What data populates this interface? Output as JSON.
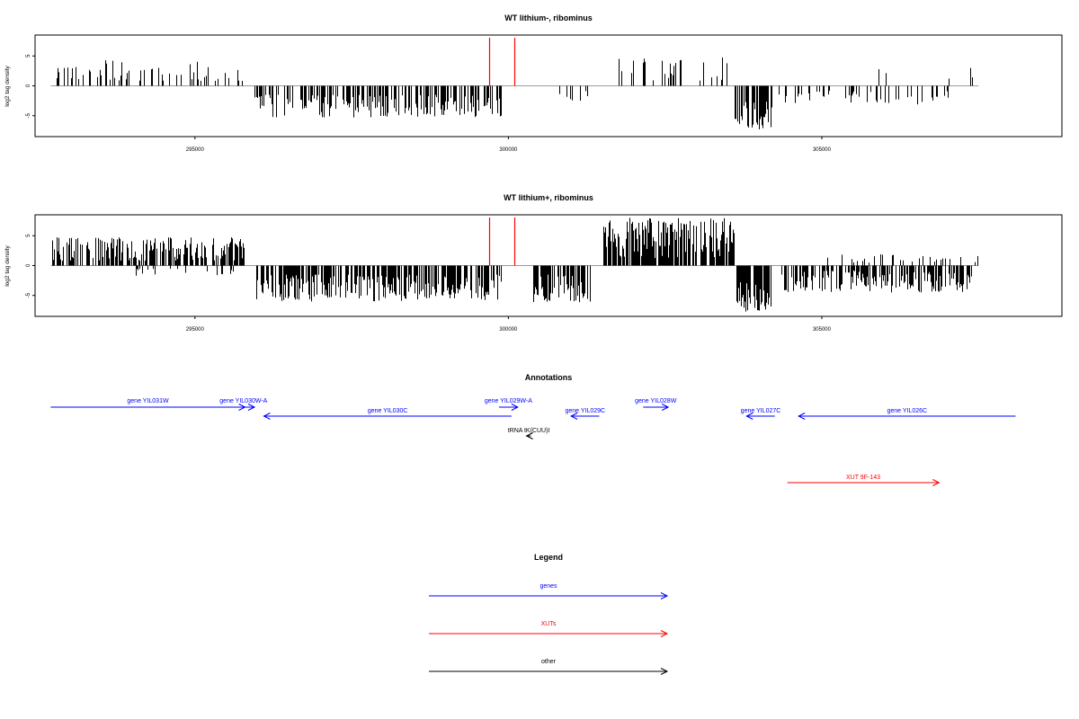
{
  "chart_data": [
    {
      "type": "bar",
      "title": "WT lithium-, ribominus",
      "ylabel": "log2 tag density",
      "ylim": [
        -8.5,
        8.5
      ],
      "yticks": [
        -5,
        0,
        5
      ],
      "xlim": [
        292450,
        308830
      ],
      "xticks": [
        295000,
        300000,
        305000
      ],
      "xtick_labels": [
        "295000",
        "300000",
        "305000"
      ],
      "markers": [
        299700,
        300100
      ],
      "marker_color": "#ff0000",
      "segments": [
        {
          "from": 292700,
          "to": 295800,
          "count": 55,
          "pattern": "sparse-positive",
          "min": 0.8,
          "max": 4.3
        },
        {
          "from": 295950,
          "to": 299900,
          "count": 210,
          "pattern": "dense-negative",
          "min": 1.5,
          "max": 5.3
        },
        {
          "from": 300800,
          "to": 301300,
          "count": 8,
          "pattern": "sparse-negative",
          "min": 0.6,
          "max": 2.5
        },
        {
          "from": 301600,
          "to": 303500,
          "count": 28,
          "pattern": "sparse-positive",
          "min": 0.8,
          "max": 4.8
        },
        {
          "from": 303600,
          "to": 304200,
          "count": 60,
          "pattern": "dense-negative",
          "min": 2.5,
          "max": 7.5
        },
        {
          "from": 304300,
          "to": 307200,
          "count": 50,
          "pattern": "sparse-negative",
          "min": 0.8,
          "max": 3.2
        },
        {
          "from": 305100,
          "to": 307500,
          "count": 5,
          "pattern": "sparse-positive",
          "min": 1.0,
          "max": 3.4
        }
      ]
    },
    {
      "type": "bar",
      "title": "WT lithium+, ribominus",
      "ylabel": "log2 tag density",
      "ylim": [
        -8.5,
        8.5
      ],
      "yticks": [
        -5,
        0,
        5
      ],
      "xlim": [
        292450,
        308830
      ],
      "xticks": [
        295000,
        300000,
        305000
      ],
      "xtick_labels": [
        "295000",
        "300000",
        "305000"
      ],
      "markers": [
        299700,
        300100
      ],
      "marker_color": "#ff0000",
      "segments": [
        {
          "from": 292700,
          "to": 295850,
          "count": 230,
          "pattern": "dense-positive",
          "min": 0.8,
          "max": 4.8
        },
        {
          "from": 293800,
          "to": 295800,
          "count": 20,
          "pattern": "sparse-negative",
          "min": 0.5,
          "max": 1.8
        },
        {
          "from": 295950,
          "to": 299900,
          "count": 300,
          "pattern": "dense-negative",
          "min": 1.5,
          "max": 6.0
        },
        {
          "from": 300400,
          "to": 301300,
          "count": 80,
          "pattern": "dense-negative",
          "min": 1.5,
          "max": 6.2
        },
        {
          "from": 301500,
          "to": 303600,
          "count": 240,
          "pattern": "dense-positive",
          "min": 1.0,
          "max": 8.0
        },
        {
          "from": 303600,
          "to": 304200,
          "count": 90,
          "pattern": "dense-negative",
          "min": 2.5,
          "max": 7.8
        },
        {
          "from": 304300,
          "to": 307400,
          "count": 200,
          "pattern": "dense-negative",
          "min": 0.8,
          "max": 4.5
        },
        {
          "from": 305000,
          "to": 307500,
          "count": 30,
          "pattern": "sparse-positive",
          "min": 0.5,
          "max": 2.0
        }
      ]
    }
  ],
  "annotations": {
    "title": "Annotations",
    "items": [
      {
        "label": "gene YIL031W",
        "start": 292700,
        "end": 295800,
        "dir": "right",
        "color": "#0000ff",
        "row": 0
      },
      {
        "label": "gene YIL030W-A",
        "start": 295600,
        "end": 295950,
        "dir": "right",
        "color": "#0000ff",
        "row": 0
      },
      {
        "label": "gene YIL030C",
        "start": 296100,
        "end": 300050,
        "dir": "left",
        "color": "#0000ff",
        "row": 1
      },
      {
        "label": "gene YIL029W-A",
        "start": 299850,
        "end": 300150,
        "dir": "right",
        "color": "#0000ff",
        "row": 0
      },
      {
        "label": "gene YIL029C",
        "start": 301000,
        "end": 301450,
        "dir": "left",
        "color": "#0000ff",
        "row": 1
      },
      {
        "label": "gene YIL028W",
        "start": 302150,
        "end": 302550,
        "dir": "right",
        "color": "#0000ff",
        "row": 0
      },
      {
        "label": "gene YIL027C",
        "start": 303800,
        "end": 304250,
        "dir": "left",
        "color": "#0000ff",
        "row": 1
      },
      {
        "label": "gene YIL026C",
        "start": 304630,
        "end": 308090,
        "dir": "left",
        "color": "#0000ff",
        "row": 1
      },
      {
        "label": "tRNA tK(CUU)I",
        "start": 300290,
        "end": 300360,
        "dir": "left",
        "color": "#000000",
        "row": 2
      },
      {
        "label": "XUT 9F-143",
        "start": 304450,
        "end": 306870,
        "dir": "right",
        "color": "#ff0000",
        "row": 3
      }
    ]
  },
  "legend": {
    "title": "Legend",
    "items": [
      {
        "label": "genes",
        "color": "#0000ff"
      },
      {
        "label": "XUTs",
        "color": "#ff0000"
      },
      {
        "label": "other",
        "color": "#000000"
      }
    ]
  }
}
